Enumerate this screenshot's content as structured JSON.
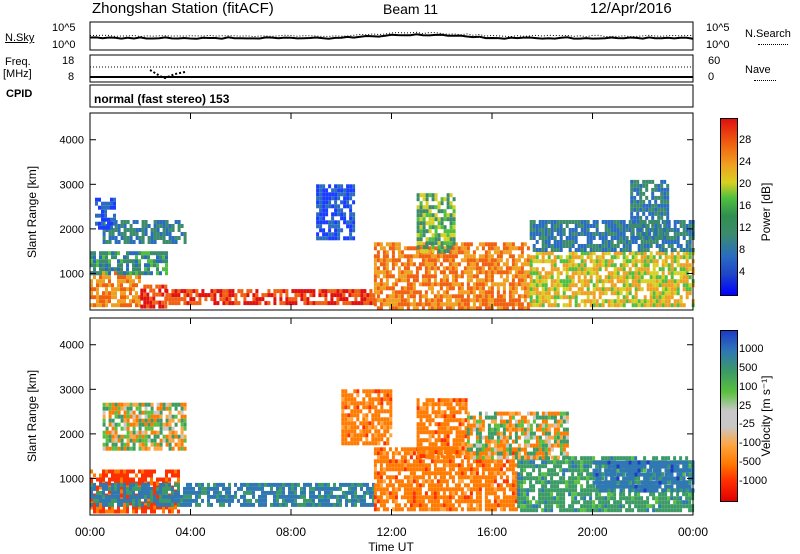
{
  "header": {
    "station": "Zhongshan Station (fitACF)",
    "beam": "Beam 11",
    "date": "12/Apr/2016"
  },
  "left_labels": {
    "nsky": "N.Sky",
    "freq1": "Freq.",
    "freq2": "[MHz]",
    "cpid": "CPID"
  },
  "right_labels": {
    "nsearch": "N.Search",
    "nave": "Nave"
  },
  "cpid_text": "normal (fast stereo) 153",
  "noise_panel": {
    "ytick_top": "10^5",
    "ytick_bottom": "10^0"
  },
  "freq_panel": {
    "left_top": "18",
    "left_bottom": "8",
    "right_top": "60",
    "right_bottom": "0"
  },
  "x_axis": {
    "label": "Time UT",
    "ticks": [
      "00:00",
      "04:00",
      "08:00",
      "12:00",
      "16:00",
      "20:00",
      "00:00"
    ]
  },
  "range_axis": {
    "label": "Slant Range [km]",
    "ticks": [
      "1000",
      "2000",
      "3000",
      "4000"
    ]
  },
  "colorbars": {
    "power": {
      "label": "Power [dB]",
      "ticks": [
        "4",
        "8",
        "12",
        "16",
        "20",
        "24",
        "28"
      ]
    },
    "velocity": {
      "label": "Velocity [m s⁻¹]",
      "ticks": [
        "-1000",
        "-500",
        "-100",
        "-25",
        "25",
        "100",
        "500",
        "1000"
      ]
    }
  },
  "chart_data": {
    "type": "heatmap",
    "x_range_hours": [
      0,
      24
    ],
    "y_range_km": [
      180,
      4600
    ],
    "power_patches": [
      {
        "t0": 0.0,
        "t1": 2.0,
        "r0": 250,
        "r1": 1050,
        "power": 24
      },
      {
        "t0": 2.0,
        "t1": 3.0,
        "r0": 250,
        "r1": 750,
        "power": 28
      },
      {
        "t0": 3.0,
        "t1": 11.3,
        "r0": 300,
        "r1": 650,
        "power": 28
      },
      {
        "t0": 0.5,
        "t1": 3.8,
        "r0": 1700,
        "r1": 2200,
        "power": 12
      },
      {
        "t0": 0.2,
        "t1": 1.0,
        "r0": 2000,
        "r1": 2700,
        "power": 8
      },
      {
        "t0": 0.0,
        "t1": 3.0,
        "r0": 1000,
        "r1": 1500,
        "power": 14
      },
      {
        "t0": 11.3,
        "t1": 17.5,
        "r0": 250,
        "r1": 1700,
        "power": 24
      },
      {
        "t0": 13.0,
        "t1": 14.5,
        "r0": 1500,
        "r1": 2800,
        "power": 16
      },
      {
        "t0": 17.5,
        "t1": 24.0,
        "r0": 250,
        "r1": 1500,
        "power": 20
      },
      {
        "t0": 17.5,
        "t1": 24.0,
        "r0": 1500,
        "r1": 2200,
        "power": 12
      },
      {
        "t0": 9.0,
        "t1": 10.5,
        "r0": 1800,
        "r1": 3000,
        "power": 8
      },
      {
        "t0": 21.5,
        "t1": 23.0,
        "r0": 1800,
        "r1": 3100,
        "power": 12
      }
    ],
    "velocity_patches": [
      {
        "t0": 0.0,
        "t1": 3.5,
        "r0": 250,
        "r1": 1200,
        "velocity": -600
      },
      {
        "t0": 0.0,
        "t1": 11.3,
        "r0": 400,
        "r1": 900,
        "velocity": 600
      },
      {
        "t0": 0.5,
        "t1": 3.8,
        "r0": 1700,
        "r1": 2700,
        "velocity": 0
      },
      {
        "t0": 11.3,
        "t1": 17.0,
        "r0": 300,
        "r1": 1700,
        "velocity": -300
      },
      {
        "t0": 13.0,
        "t1": 15.0,
        "r0": 1500,
        "r1": 2800,
        "velocity": -300
      },
      {
        "t0": 17.0,
        "t1": 24.0,
        "r0": 250,
        "r1": 1500,
        "velocity": 300
      },
      {
        "t0": 20.0,
        "t1": 24.0,
        "r0": 700,
        "r1": 1400,
        "velocity": 800
      },
      {
        "t0": 15.0,
        "t1": 19.0,
        "r0": 1500,
        "r1": 2500,
        "velocity": 0
      },
      {
        "t0": 10.0,
        "t1": 12.0,
        "r0": 1800,
        "r1": 3000,
        "velocity": -300
      }
    ]
  }
}
